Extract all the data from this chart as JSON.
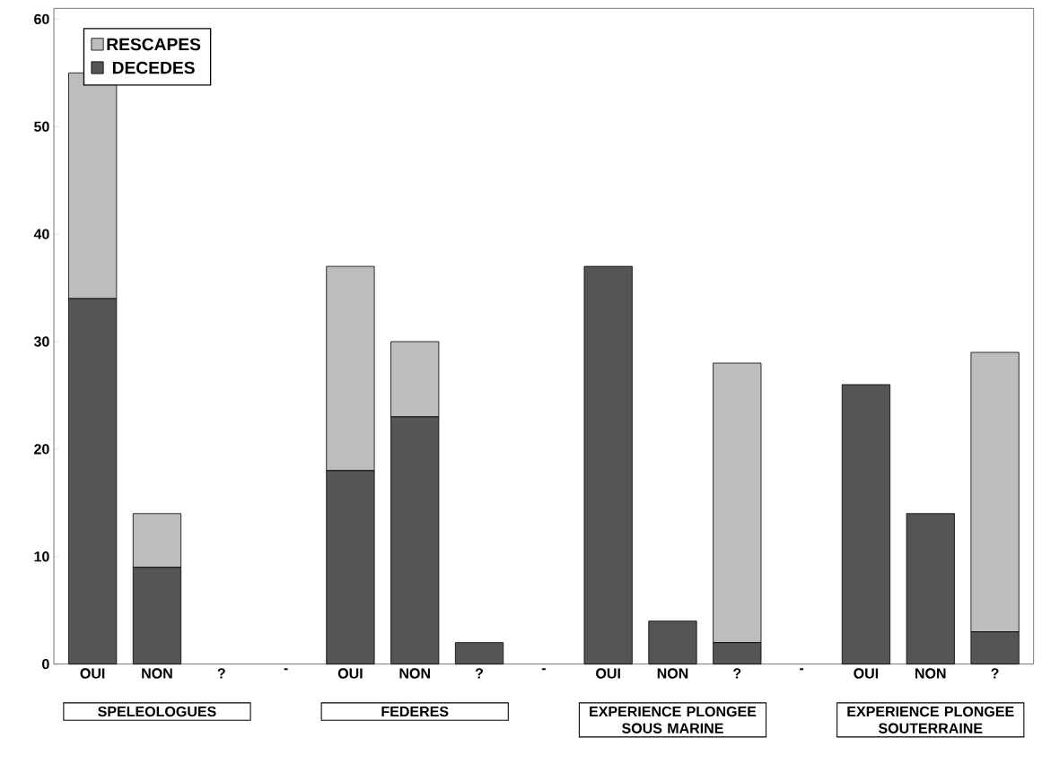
{
  "chart_data": {
    "type": "bar",
    "stacked": true,
    "categories": [
      "OUI",
      "NON",
      "?",
      "-",
      "OUI",
      "NON",
      "?",
      "-",
      "OUI",
      "NON",
      "?",
      "-",
      "OUI",
      "NON",
      "?"
    ],
    "series": [
      {
        "name": "DECEDES",
        "color": "#555555",
        "values": [
          34,
          9,
          0,
          0,
          18,
          23,
          2,
          0,
          37,
          4,
          2,
          0,
          26,
          14,
          3
        ]
      },
      {
        "name": "RESCAPES",
        "color": "#bdbdbd",
        "values": [
          21,
          5,
          0,
          0,
          19,
          7,
          0,
          0,
          0,
          0,
          26,
          0,
          0,
          0,
          26
        ]
      }
    ],
    "ylim": [
      0,
      61
    ],
    "yticks": [
      0,
      10,
      20,
      30,
      40,
      50,
      60
    ],
    "legend": "top left",
    "annotations": [
      "SPELEOLOGUES",
      "FEDERES",
      "EXPERIENCE PLONGEE SOUS MARINE",
      "EXPERIENCE PLONGEE SOUTERRAINE"
    ]
  }
}
